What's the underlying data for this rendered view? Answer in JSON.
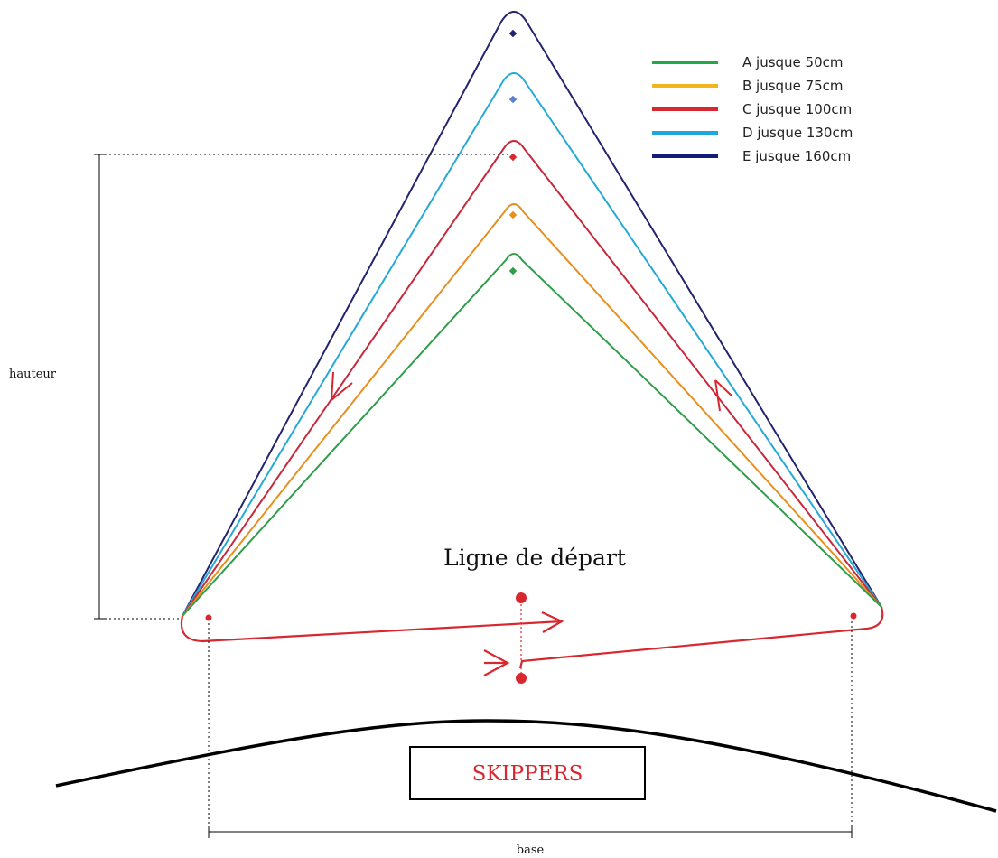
{
  "legend": [
    {
      "label": "A jusque 50cm",
      "color": "#22a845"
    },
    {
      "label": "B jusque 75cm",
      "color": "#f2b51c"
    },
    {
      "label": "C jusque 100cm",
      "color": "#d8282f"
    },
    {
      "label": "D jusque 130cm",
      "color": "#1ea7dc"
    },
    {
      "label": "E jusque 160cm",
      "color": "#141c78"
    }
  ],
  "course_colors": {
    "A": "#2f9e4a",
    "B": "#e8901f",
    "C": "#c8283c",
    "D": "#27a9d6",
    "E": "#24246e"
  },
  "buoy_colors": {
    "A": "#2f9e4a",
    "B": "#e8901f",
    "C": "#d8282f",
    "D": "#5b7fd0",
    "E": "#24246e"
  },
  "route_color": "#d8282f",
  "start_line": {
    "label": "Ligne de départ"
  },
  "dimensions": {
    "height_label": "hauteur",
    "base_label": "base"
  },
  "skippers": {
    "label": "SKIPPERS",
    "color": "#d8282f"
  }
}
